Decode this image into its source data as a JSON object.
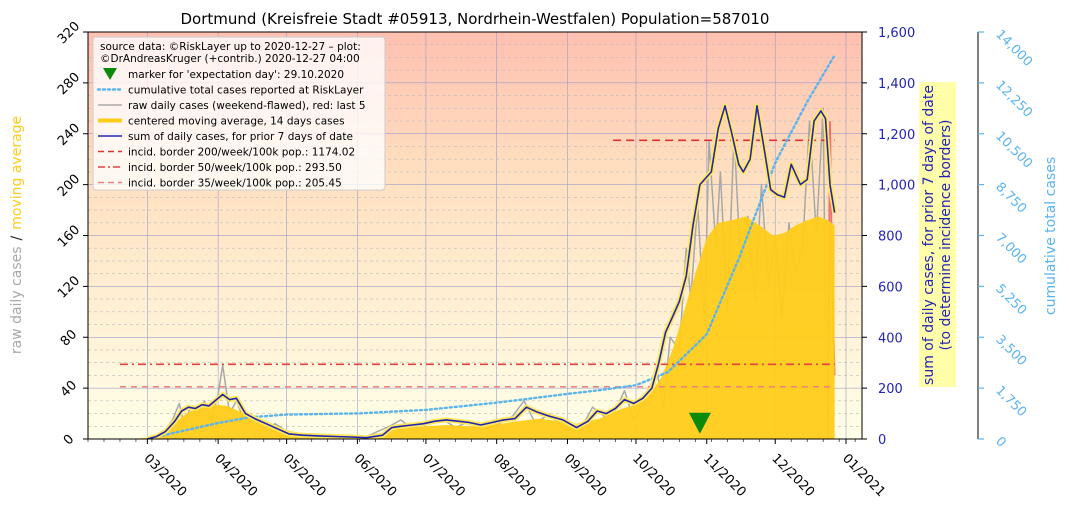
{
  "chart_data": {
    "type": "line",
    "title": "Dortmund (Kreisfreie Stadt #05913, Nordrhein-Westfalen) Population=587010",
    "legend": {
      "placement": "top-left",
      "header_line1": "source data: ©RiskLayer up to 2020-12-27 – plot:",
      "header_line2": "©DrAndreasKruger (+contrib.) 2020-12-27 04:00",
      "entries": [
        {
          "label": "marker for 'expectation day': 29.10.2020",
          "kind": "marker",
          "color": "#0a8a0a"
        },
        {
          "label": "cumulative total cases reported at RiskLayer",
          "kind": "dotted",
          "color": "#5ab4f0"
        },
        {
          "label": "raw daily cases (weekend-flawed), red: last 5",
          "kind": "line",
          "color": "#a8a8a8"
        },
        {
          "label": "centered moving average, 14 days cases",
          "kind": "thick",
          "color": "#ffcc1a"
        },
        {
          "label": "sum of daily cases, for prior 7 days of date",
          "kind": "line",
          "color": "#2323b4"
        },
        {
          "label": "incid. border 200/week/100k pop.: 1174.02",
          "kind": "dashed",
          "color": "#e03030"
        },
        {
          "label": "incid. border 50/week/100k pop.: 293.50",
          "kind": "dashdot",
          "color": "#e84040"
        },
        {
          "label": "incid. border 35/week/100k pop.: 205.45",
          "kind": "dashed",
          "color": "#f08080"
        }
      ]
    },
    "left_axis": {
      "label_parts": [
        "raw daily cases",
        "/",
        "moving average"
      ],
      "label_colors": [
        "#a8a8a8",
        "#222222",
        "#ffcc1a"
      ],
      "ylim": [
        0,
        320
      ],
      "ticks": [
        0,
        40,
        80,
        120,
        160,
        200,
        240,
        280,
        320
      ]
    },
    "right_axis": {
      "label_line1": "sum of daily cases, for prior 7 days of date",
      "label_line2": "(to determine incidence borders)",
      "color": "#2323b4",
      "ylim": [
        0,
        1600
      ],
      "ticks": [
        0,
        200,
        400,
        600,
        800,
        1000,
        1200,
        1400,
        1600
      ],
      "tick_labels": [
        "0",
        "200",
        "400",
        "600",
        "800",
        "1,000",
        "1,200",
        "1,400",
        "1,600"
      ]
    },
    "far_right_axis": {
      "label": "cumulative total cases",
      "color": "#5ab4f0",
      "ylim": [
        0,
        14000
      ],
      "ticks": [
        0,
        1750,
        3500,
        5250,
        7000,
        8750,
        10500,
        12250,
        14000
      ],
      "tick_labels": [
        "0",
        "1,750",
        "3,500",
        "5,250",
        "7,000",
        "8,750",
        "10,500",
        "12,250",
        "14,000"
      ]
    },
    "x_axis": {
      "type": "date",
      "xlim": [
        "2020-02-04",
        "2021-01-08"
      ],
      "ticks": [
        "2020-03-01",
        "2020-04-01",
        "2020-05-01",
        "2020-06-01",
        "2020-07-01",
        "2020-08-01",
        "2020-09-01",
        "2020-10-01",
        "2020-11-01",
        "2020-12-01",
        "2021-01-01"
      ],
      "tick_labels": [
        "03/2020",
        "04/2020",
        "05/2020",
        "06/2020",
        "07/2020",
        "08/2020",
        "09/2020",
        "10/2020",
        "11/2020",
        "12/2020",
        "01/2021"
      ]
    },
    "expectation_marker": {
      "x": "2020-10-29",
      "y_left": 12,
      "color": "#0a8a0a"
    },
    "incidence_borders": [
      {
        "name": "200",
        "y_right": 1174.02,
        "x_start": "2020-09-21",
        "x_end": "2020-12-27",
        "color": "#e03030"
      },
      {
        "name": "50",
        "y_right": 293.5,
        "x_start": "2020-02-18",
        "x_end": "2020-12-27",
        "color": "#e84040"
      },
      {
        "name": "35",
        "y_right": 205.45,
        "x_start": "2020-02-18",
        "x_end": "2020-12-27",
        "color": "#f08080"
      }
    ],
    "series_data": {
      "moving_average_14d": [
        [
          "2020-02-22",
          0
        ],
        [
          "2020-03-01",
          1
        ],
        [
          "2020-03-06",
          3
        ],
        [
          "2020-03-10",
          8
        ],
        [
          "2020-03-14",
          14
        ],
        [
          "2020-03-18",
          20
        ],
        [
          "2020-03-22",
          24
        ],
        [
          "2020-03-26",
          26
        ],
        [
          "2020-03-31",
          27
        ],
        [
          "2020-04-05",
          26
        ],
        [
          "2020-04-10",
          22
        ],
        [
          "2020-04-15",
          18
        ],
        [
          "2020-04-20",
          14
        ],
        [
          "2020-04-25",
          10
        ],
        [
          "2020-05-01",
          7
        ],
        [
          "2020-05-08",
          4
        ],
        [
          "2020-05-15",
          3
        ],
        [
          "2020-05-25",
          2
        ],
        [
          "2020-06-05",
          2
        ],
        [
          "2020-06-12",
          5
        ],
        [
          "2020-06-18",
          8
        ],
        [
          "2020-06-25",
          9
        ],
        [
          "2020-07-01",
          10
        ],
        [
          "2020-07-10",
          11
        ],
        [
          "2020-07-20",
          10
        ],
        [
          "2020-07-30",
          11
        ],
        [
          "2020-08-10",
          14
        ],
        [
          "2020-08-20",
          16
        ],
        [
          "2020-08-28",
          14
        ],
        [
          "2020-09-05",
          12
        ],
        [
          "2020-09-15",
          16
        ],
        [
          "2020-09-25",
          24
        ],
        [
          "2020-10-01",
          27
        ],
        [
          "2020-10-07",
          35
        ],
        [
          "2020-10-12",
          48
        ],
        [
          "2020-10-17",
          70
        ],
        [
          "2020-10-22",
          100
        ],
        [
          "2020-10-27",
          130
        ],
        [
          "2020-11-01",
          158
        ],
        [
          "2020-11-06",
          170
        ],
        [
          "2020-11-12",
          172
        ],
        [
          "2020-11-18",
          175
        ],
        [
          "2020-11-24",
          168
        ],
        [
          "2020-11-30",
          160
        ],
        [
          "2020-12-05",
          162
        ],
        [
          "2020-12-10",
          168
        ],
        [
          "2020-12-15",
          172
        ],
        [
          "2020-12-20",
          175
        ],
        [
          "2020-12-24",
          172
        ],
        [
          "2020-12-27",
          168
        ]
      ],
      "sum_prior_7_days": [
        [
          "2020-03-01",
          0
        ],
        [
          "2020-03-05",
          10
        ],
        [
          "2020-03-09",
          30
        ],
        [
          "2020-03-13",
          70
        ],
        [
          "2020-03-16",
          110
        ],
        [
          "2020-03-19",
          125
        ],
        [
          "2020-03-22",
          120
        ],
        [
          "2020-03-25",
          135
        ],
        [
          "2020-03-28",
          130
        ],
        [
          "2020-04-01",
          160
        ],
        [
          "2020-04-03",
          175
        ],
        [
          "2020-04-06",
          155
        ],
        [
          "2020-04-09",
          160
        ],
        [
          "2020-04-13",
          100
        ],
        [
          "2020-04-17",
          80
        ],
        [
          "2020-04-22",
          60
        ],
        [
          "2020-04-27",
          40
        ],
        [
          "2020-05-02",
          20
        ],
        [
          "2020-05-08",
          15
        ],
        [
          "2020-05-15",
          12
        ],
        [
          "2020-05-22",
          10
        ],
        [
          "2020-05-29",
          8
        ],
        [
          "2020-06-05",
          5
        ],
        [
          "2020-06-12",
          15
        ],
        [
          "2020-06-16",
          45
        ],
        [
          "2020-06-20",
          50
        ],
        [
          "2020-06-25",
          55
        ],
        [
          "2020-06-30",
          60
        ],
        [
          "2020-07-05",
          70
        ],
        [
          "2020-07-10",
          75
        ],
        [
          "2020-07-15",
          70
        ],
        [
          "2020-07-20",
          65
        ],
        [
          "2020-07-25",
          55
        ],
        [
          "2020-07-30",
          65
        ],
        [
          "2020-08-04",
          75
        ],
        [
          "2020-08-09",
          80
        ],
        [
          "2020-08-14",
          125
        ],
        [
          "2020-08-19",
          105
        ],
        [
          "2020-08-24",
          90
        ],
        [
          "2020-08-30",
          75
        ],
        [
          "2020-09-05",
          45
        ],
        [
          "2020-09-10",
          70
        ],
        [
          "2020-09-14",
          110
        ],
        [
          "2020-09-18",
          100
        ],
        [
          "2020-09-22",
          120
        ],
        [
          "2020-09-26",
          155
        ],
        [
          "2020-09-30",
          140
        ],
        [
          "2020-10-04",
          160
        ],
        [
          "2020-10-08",
          200
        ],
        [
          "2020-10-11",
          300
        ],
        [
          "2020-10-14",
          420
        ],
        [
          "2020-10-17",
          480
        ],
        [
          "2020-10-20",
          540
        ],
        [
          "2020-10-23",
          640
        ],
        [
          "2020-10-26",
          840
        ],
        [
          "2020-10-29",
          1000
        ],
        [
          "2020-11-01",
          1030
        ],
        [
          "2020-11-03",
          1050
        ],
        [
          "2020-11-06",
          1220
        ],
        [
          "2020-11-09",
          1310
        ],
        [
          "2020-11-12",
          1200
        ],
        [
          "2020-11-15",
          1080
        ],
        [
          "2020-11-17",
          1050
        ],
        [
          "2020-11-20",
          1100
        ],
        [
          "2020-11-23",
          1310
        ],
        [
          "2020-11-26",
          1150
        ],
        [
          "2020-11-29",
          980
        ],
        [
          "2020-12-02",
          960
        ],
        [
          "2020-12-05",
          950
        ],
        [
          "2020-12-08",
          1080
        ],
        [
          "2020-12-12",
          1000
        ],
        [
          "2020-12-15",
          1020
        ],
        [
          "2020-12-18",
          1250
        ],
        [
          "2020-12-21",
          1290
        ],
        [
          "2020-12-23",
          1260
        ],
        [
          "2020-12-25",
          1000
        ],
        [
          "2020-12-27",
          890
        ]
      ],
      "cumulative_total": [
        [
          "2020-03-01",
          0
        ],
        [
          "2020-03-15",
          250
        ],
        [
          "2020-04-01",
          550
        ],
        [
          "2020-04-15",
          750
        ],
        [
          "2020-05-01",
          840
        ],
        [
          "2020-06-01",
          880
        ],
        [
          "2020-07-01",
          1000
        ],
        [
          "2020-08-01",
          1250
        ],
        [
          "2020-09-01",
          1550
        ],
        [
          "2020-09-15",
          1680
        ],
        [
          "2020-10-01",
          1850
        ],
        [
          "2020-10-15",
          2300
        ],
        [
          "2020-11-01",
          3600
        ],
        [
          "2020-11-15",
          6200
        ],
        [
          "2020-12-01",
          9500
        ],
        [
          "2020-12-15",
          11600
        ],
        [
          "2020-12-27",
          13200
        ]
      ],
      "raw_daily": [
        [
          "2020-03-01",
          0
        ],
        [
          "2020-03-08",
          5
        ],
        [
          "2020-03-12",
          15
        ],
        [
          "2020-03-15",
          28
        ],
        [
          "2020-03-17",
          12
        ],
        [
          "2020-03-20",
          25
        ],
        [
          "2020-03-23",
          18
        ],
        [
          "2020-03-26",
          30
        ],
        [
          "2020-03-29",
          15
        ],
        [
          "2020-04-01",
          35
        ],
        [
          "2020-04-03",
          58
        ],
        [
          "2020-04-06",
          20
        ],
        [
          "2020-04-09",
          30
        ],
        [
          "2020-04-13",
          12
        ],
        [
          "2020-04-17",
          15
        ],
        [
          "2020-04-21",
          8
        ],
        [
          "2020-04-26",
          12
        ],
        [
          "2020-05-01",
          6
        ],
        [
          "2020-05-08",
          4
        ],
        [
          "2020-05-15",
          2
        ],
        [
          "2020-05-25",
          3
        ],
        [
          "2020-06-05",
          2
        ],
        [
          "2020-06-15",
          10
        ],
        [
          "2020-06-20",
          15
        ],
        [
          "2020-06-25",
          8
        ],
        [
          "2020-07-02",
          12
        ],
        [
          "2020-07-08",
          16
        ],
        [
          "2020-07-14",
          9
        ],
        [
          "2020-07-20",
          14
        ],
        [
          "2020-07-26",
          7
        ],
        [
          "2020-08-02",
          12
        ],
        [
          "2020-08-08",
          18
        ],
        [
          "2020-08-13",
          30
        ],
        [
          "2020-08-18",
          12
        ],
        [
          "2020-08-24",
          20
        ],
        [
          "2020-08-30",
          8
        ],
        [
          "2020-09-06",
          5
        ],
        [
          "2020-09-12",
          25
        ],
        [
          "2020-09-17",
          18
        ],
        [
          "2020-09-22",
          22
        ],
        [
          "2020-09-26",
          38
        ],
        [
          "2020-09-30",
          15
        ],
        [
          "2020-10-05",
          30
        ],
        [
          "2020-10-10",
          55
        ],
        [
          "2020-10-13",
          25
        ],
        [
          "2020-10-16",
          80
        ],
        [
          "2020-10-20",
          70
        ],
        [
          "2020-10-23",
          150
        ],
        [
          "2020-10-25",
          110
        ],
        [
          "2020-10-28",
          185
        ],
        [
          "2020-10-31",
          90
        ],
        [
          "2020-11-02",
          235
        ],
        [
          "2020-11-05",
          150
        ],
        [
          "2020-11-07",
          210
        ],
        [
          "2020-11-10",
          100
        ],
        [
          "2020-11-13",
          240
        ],
        [
          "2020-11-16",
          130
        ],
        [
          "2020-11-19",
          175
        ],
        [
          "2020-11-22",
          110
        ],
        [
          "2020-11-25",
          200
        ],
        [
          "2020-11-28",
          120
        ],
        [
          "2020-12-01",
          160
        ],
        [
          "2020-12-04",
          95
        ],
        [
          "2020-12-07",
          170
        ],
        [
          "2020-12-10",
          130
        ],
        [
          "2020-12-13",
          150
        ],
        [
          "2020-12-16",
          250
        ],
        [
          "2020-12-19",
          160
        ],
        [
          "2020-12-22",
          260
        ],
        [
          "2020-12-23",
          90
        ]
      ],
      "raw_daily_last5": [
        [
          "2020-12-23",
          0
        ],
        [
          "2020-12-24",
          0
        ],
        [
          "2020-12-25",
          250
        ],
        [
          "2020-12-26",
          120
        ],
        [
          "2020-12-27",
          50
        ]
      ]
    }
  }
}
